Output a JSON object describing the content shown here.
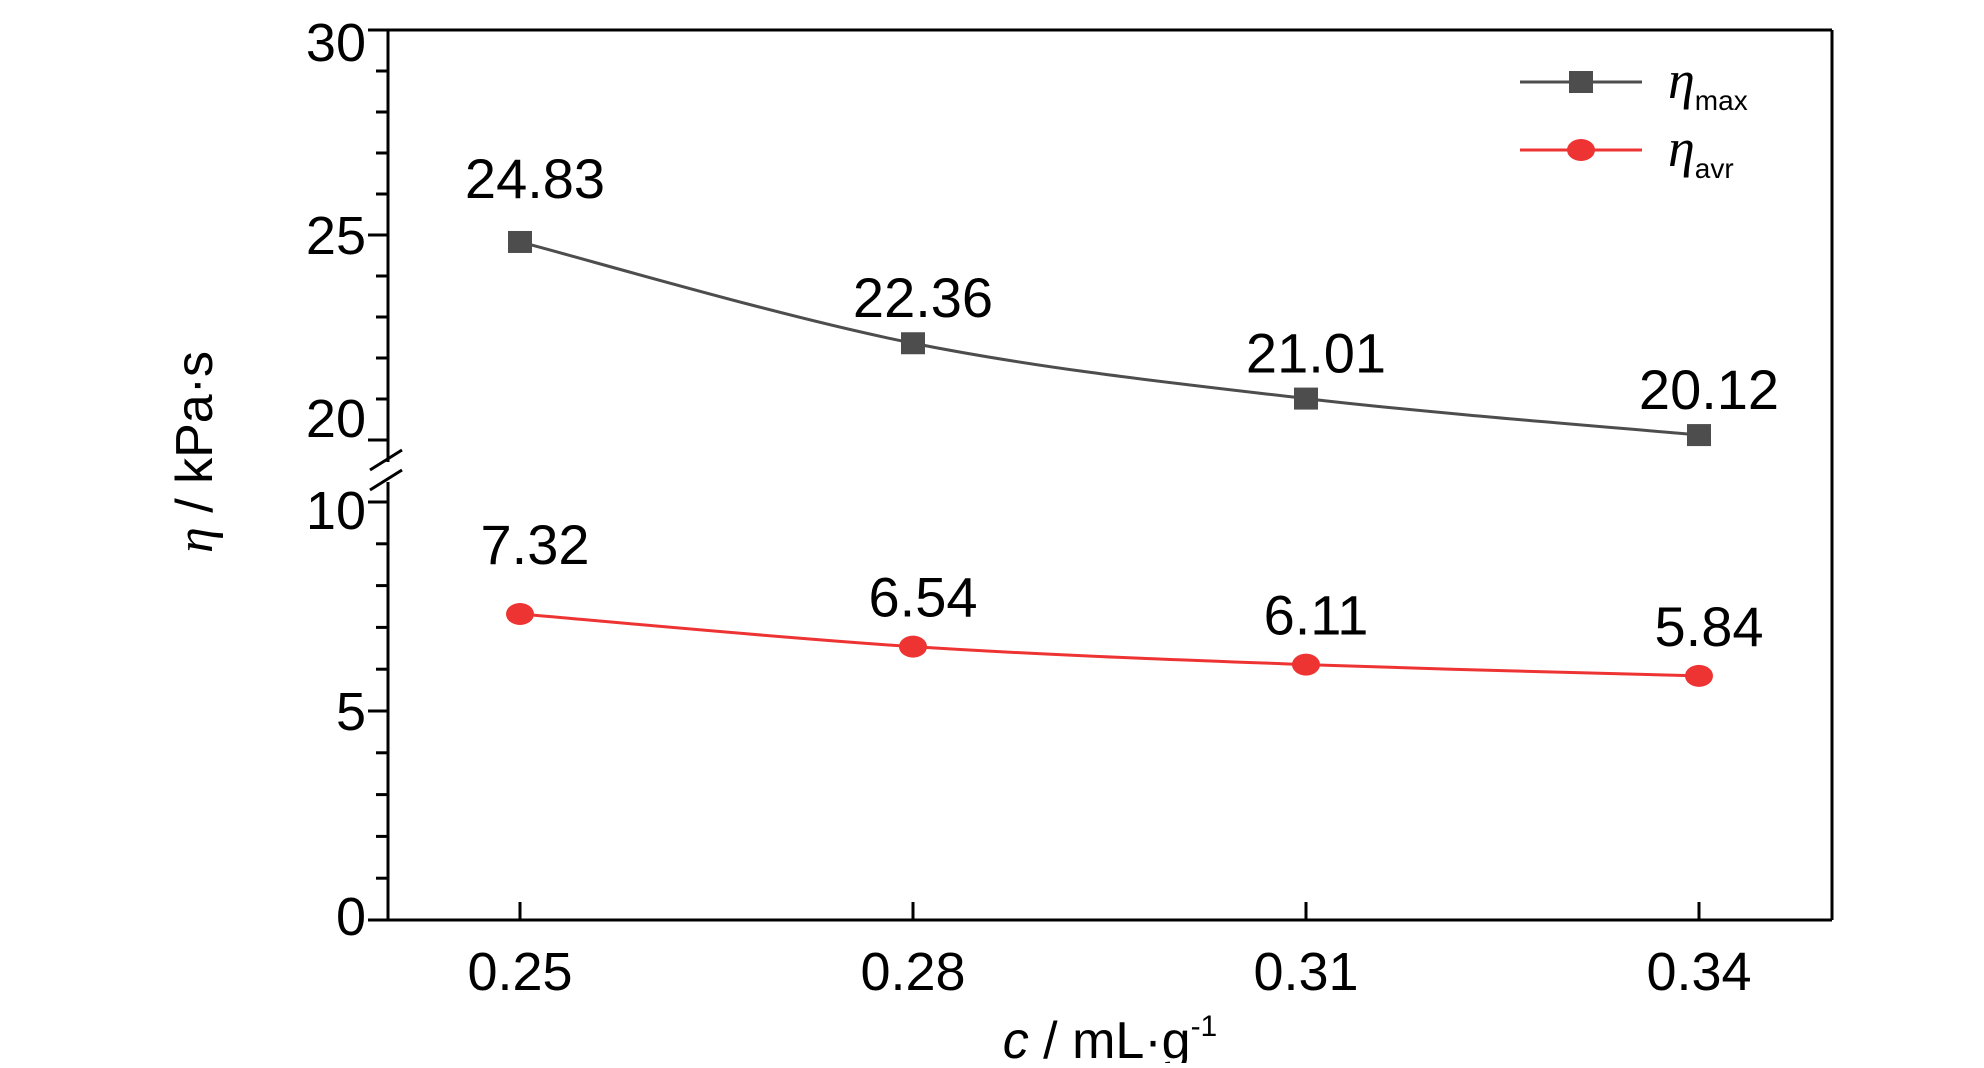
{
  "chart_data": {
    "type": "line",
    "categories": [
      "0.25",
      "0.28",
      "0.31",
      "0.34"
    ],
    "series": [
      {
        "name": "η",
        "name_sub": "max",
        "values": [
          24.83,
          22.36,
          21.01,
          20.12
        ],
        "labels": [
          "24.83",
          "22.36",
          "21.01",
          "20.12"
        ],
        "color": "#4d4d4d",
        "marker": "square"
      },
      {
        "name": "η",
        "name_sub": "avr",
        "values": [
          7.32,
          6.54,
          6.11,
          5.84
        ],
        "labels": [
          "7.32",
          "6.54",
          "6.11",
          "5.84"
        ],
        "color": "#ee3333",
        "marker": "circle"
      }
    ],
    "x_axis": {
      "label_var": "c",
      "label_rest": " / mL·g",
      "label_sup": "-1",
      "tick_labels": [
        "0.25",
        "0.28",
        "0.31",
        "0.34"
      ]
    },
    "y_axis": {
      "label_var": "η",
      "label_rest": " / kPa·s",
      "broken": true,
      "lower_segment": {
        "ylim": [
          0,
          10
        ],
        "ticks": [
          0,
          5,
          10
        ],
        "tick_labels": [
          "0",
          "5",
          "10"
        ]
      },
      "upper_segment": {
        "ylim": [
          20,
          30
        ],
        "ticks": [
          20,
          25,
          30
        ],
        "tick_labels": [
          "20",
          "25",
          "30"
        ]
      }
    },
    "legend": {
      "position": "top-right"
    },
    "grid": false
  }
}
